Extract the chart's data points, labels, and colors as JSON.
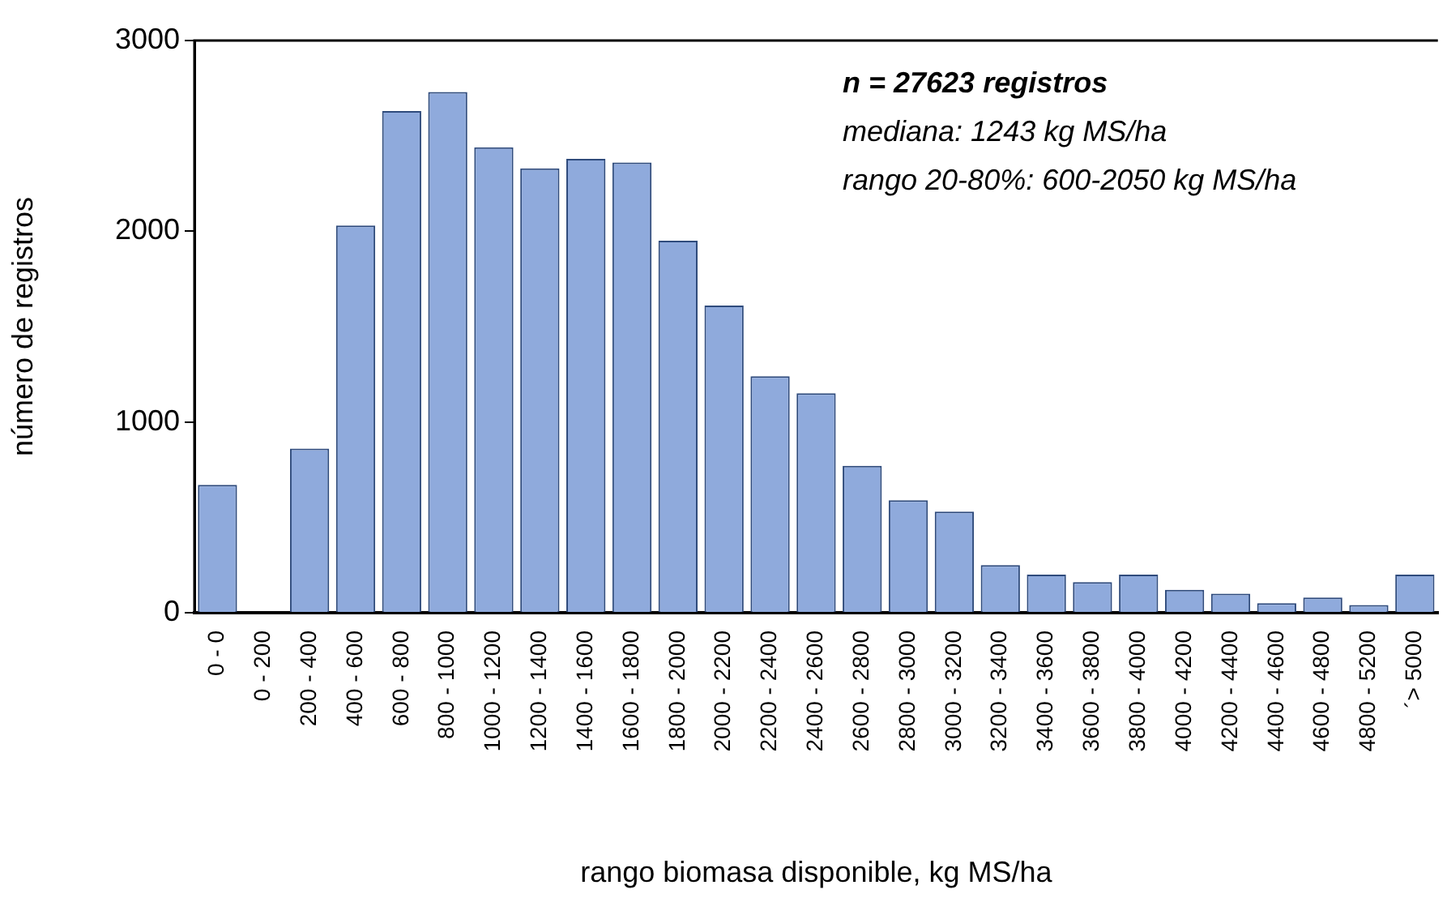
{
  "chart_data": {
    "type": "bar",
    "xlabel": "rango biomasa disponible, kg MS/ha",
    "ylabel": "número de registros",
    "categories": [
      "0 - 0",
      "0 - 200",
      "200 - 400",
      "400 - 600",
      "600 - 800",
      "800 - 1000",
      "1000 - 1200",
      "1200 - 1400",
      "1400 - 1600",
      "1600 - 1800",
      "1800 - 2000",
      "2000 - 2200",
      "2200 - 2400",
      "2400 - 2600",
      "2600 - 2800",
      "2800 - 3000",
      "3000 - 3200",
      "3200 - 3400",
      "3400 - 3600",
      "3600 - 3800",
      "3800 - 4000",
      "4000 - 4200",
      "4200 - 4400",
      "4400 - 4600",
      "4600 - 4800",
      "4800 - 5200",
      "´> 5000"
    ],
    "values": [
      670,
      0,
      860,
      2030,
      2630,
      2730,
      2440,
      2330,
      2380,
      2360,
      1950,
      1610,
      1240,
      1150,
      770,
      590,
      530,
      250,
      200,
      160,
      200,
      120,
      100,
      50,
      80,
      40,
      200
    ],
    "color": "#8faadc",
    "ylim": [
      0,
      3000
    ],
    "yticks": [
      0,
      1000,
      2000,
      3000
    ],
    "grid": false,
    "legend": false,
    "annotations": [
      "n = 27623 registros",
      "mediana: 1243 kg MS/ha",
      "rango 20-80%: 600-2050 kg MS/ha"
    ]
  }
}
